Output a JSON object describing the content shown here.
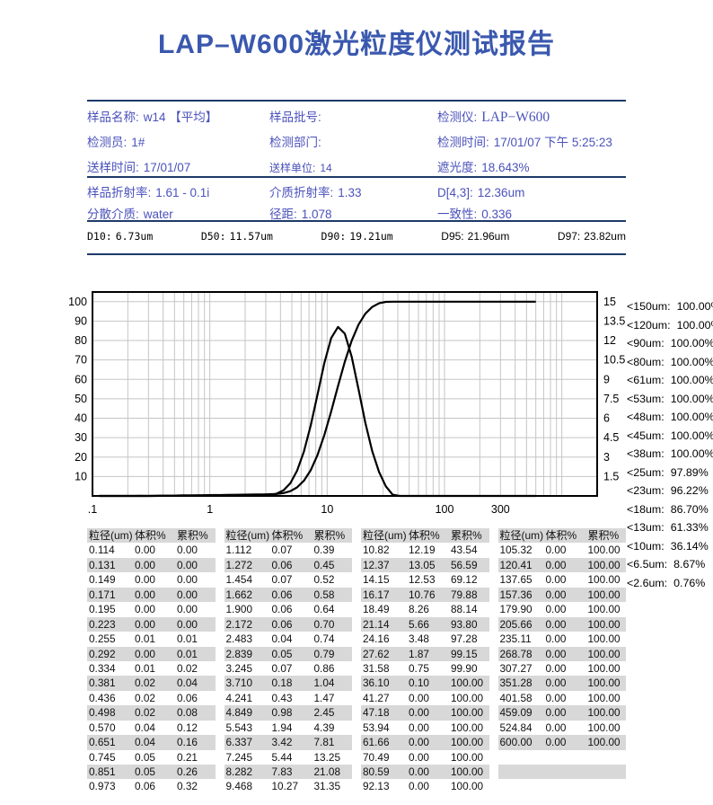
{
  "title": "LAP–W600激光粒度仪测试报告",
  "info": {
    "rows_top": [
      [
        {
          "label": "样品名称:",
          "value": "w14 【平均】"
        },
        {
          "label": "样品批号:",
          "value": ""
        },
        {
          "label": "检测仪:",
          "value": "LAP−W600",
          "serif": true
        }
      ],
      [
        {
          "label": "检测员:",
          "value": "1#"
        },
        {
          "label": "检测部门:",
          "value": ""
        },
        {
          "label": "检测时间:",
          "value": "17/01/07 下午 5:25:23"
        }
      ],
      [
        {
          "label": "送样时间:",
          "value": "17/01/07"
        },
        {
          "label": "送样单位:",
          "value": "14",
          "small": true
        },
        {
          "label": "遮光度:",
          "value": "18.643%"
        }
      ]
    ],
    "rows_mid": [
      [
        {
          "label": "样品折射率:",
          "value": "1.61 - 0.1i"
        },
        {
          "label": "介质折射率:",
          "value": "1.33"
        },
        {
          "label": "D[4,3]:",
          "value": "12.36um"
        }
      ],
      [
        {
          "label": "分散介质:",
          "value": "water"
        },
        {
          "label": "径距:",
          "value": "1.078"
        },
        {
          "label": "一致性:",
          "value": "0.336"
        }
      ]
    ]
  },
  "d_values": [
    {
      "label": "D10:",
      "value": "6.73um",
      "mono": true
    },
    {
      "label": "D50:",
      "value": "11.57um",
      "mono": true
    },
    {
      "label": "D90:",
      "value": "19.21um",
      "mono": true
    },
    {
      "label": "D95:",
      "value": "21.96um",
      "mono": false
    },
    {
      "label": "D97:",
      "value": "23.82um",
      "mono": false
    }
  ],
  "chart_data": {
    "type": "line",
    "x_scale": "log",
    "x_range": [
      0.1,
      2000
    ],
    "x_tick_labels": [
      ".1",
      "1",
      "10",
      "100",
      "300"
    ],
    "x_tick_values": [
      0.1,
      1,
      10,
      100,
      300
    ],
    "left_axis": {
      "label": "累积%",
      "range": [
        0,
        105
      ],
      "ticks": [
        10,
        20,
        30,
        40,
        50,
        60,
        70,
        80,
        90,
        100
      ]
    },
    "right_axis": {
      "label": "体积%",
      "range": [
        0,
        15.75
      ],
      "ticks": [
        1.5,
        3,
        4.5,
        6,
        7.5,
        9,
        10.5,
        12,
        13.5,
        15
      ]
    },
    "grid": true,
    "x": [
      0.114,
      0.131,
      0.149,
      0.171,
      0.195,
      0.223,
      0.255,
      0.292,
      0.334,
      0.381,
      0.436,
      0.498,
      0.57,
      0.651,
      0.745,
      0.851,
      0.973,
      1.112,
      1.272,
      1.454,
      1.662,
      1.9,
      2.172,
      2.483,
      2.839,
      3.245,
      3.71,
      4.241,
      4.849,
      5.543,
      6.337,
      7.245,
      8.282,
      9.468,
      10.82,
      12.37,
      14.15,
      16.17,
      18.49,
      21.14,
      24.16,
      27.62,
      31.58,
      36.1,
      41.27,
      47.18,
      53.94,
      61.66,
      70.49,
      80.59,
      92.13,
      105.32,
      120.41,
      137.65,
      157.36,
      179.9,
      205.66,
      235.11,
      268.78,
      307.27,
      351.28,
      401.58,
      459.09,
      524.84,
      600.0
    ],
    "series": [
      {
        "name": "体积%",
        "axis": "right",
        "values": [
          0,
          0,
          0,
          0,
          0,
          0,
          0.01,
          0,
          0.01,
          0.02,
          0.02,
          0.02,
          0.04,
          0.04,
          0.05,
          0.05,
          0.06,
          0.07,
          0.06,
          0.07,
          0.06,
          0.06,
          0.06,
          0.04,
          0.05,
          0.07,
          0.18,
          0.43,
          0.98,
          1.94,
          3.42,
          5.44,
          7.83,
          10.27,
          12.19,
          13.05,
          12.53,
          10.76,
          8.26,
          5.66,
          3.48,
          1.87,
          0.75,
          0.1,
          0,
          0,
          0,
          0,
          0,
          0,
          0,
          0,
          0,
          0,
          0,
          0,
          0,
          0,
          0,
          0,
          0,
          0,
          0,
          0,
          0
        ]
      },
      {
        "name": "累积%",
        "axis": "left",
        "values": [
          0,
          0,
          0,
          0,
          0,
          0,
          0.01,
          0.01,
          0.02,
          0.04,
          0.06,
          0.08,
          0.12,
          0.16,
          0.21,
          0.26,
          0.32,
          0.39,
          0.45,
          0.52,
          0.58,
          0.64,
          0.7,
          0.74,
          0.79,
          0.86,
          1.04,
          1.47,
          2.45,
          4.39,
          7.81,
          13.25,
          21.08,
          31.35,
          43.54,
          56.59,
          69.12,
          79.88,
          88.14,
          93.8,
          97.28,
          99.15,
          99.9,
          100,
          100,
          100,
          100,
          100,
          100,
          100,
          100,
          100,
          100,
          100,
          100,
          100,
          100,
          100,
          100,
          100,
          100,
          100,
          100,
          100,
          100
        ]
      }
    ]
  },
  "pct_list": [
    {
      "label": "<150um:",
      "value": "100.00%"
    },
    {
      "label": "<120um:",
      "value": "100.00%"
    },
    {
      "label": "<90um:",
      "value": "100.00%"
    },
    {
      "label": "<80um:",
      "value": "100.00%"
    },
    {
      "label": "<61um:",
      "value": "100.00%"
    },
    {
      "label": "<53um:",
      "value": "100.00%"
    },
    {
      "label": "<48um:",
      "value": "100.00%"
    },
    {
      "label": "<45um:",
      "value": "100.00%"
    },
    {
      "label": "<38um:",
      "value": "100.00%"
    },
    {
      "label": "<25um:",
      "value": "97.89%"
    },
    {
      "label": "<23um:",
      "value": "96.22%"
    },
    {
      "label": "<18um:",
      "value": "86.70%"
    },
    {
      "label": "<13um:",
      "value": "61.33%"
    },
    {
      "label": "<10um:",
      "value": "36.14%"
    },
    {
      "label": "<6.5um:",
      "value": "8.67%"
    },
    {
      "label": "<2.6um:",
      "value": "0.76%"
    }
  ],
  "table": {
    "headers": [
      "粒径(um)",
      "体积%",
      "累积%"
    ],
    "groups": [
      [
        [
          "0.114",
          "0.00",
          "0.00"
        ],
        [
          "0.131",
          "0.00",
          "0.00"
        ],
        [
          "0.149",
          "0.00",
          "0.00"
        ],
        [
          "0.171",
          "0.00",
          "0.00"
        ],
        [
          "0.195",
          "0.00",
          "0.00"
        ],
        [
          "0.223",
          "0.00",
          "0.00"
        ],
        [
          "0.255",
          "0.01",
          "0.01"
        ],
        [
          "0.292",
          "0.00",
          "0.01"
        ],
        [
          "0.334",
          "0.01",
          "0.02"
        ],
        [
          "0.381",
          "0.02",
          "0.04"
        ],
        [
          "0.436",
          "0.02",
          "0.06"
        ],
        [
          "0.498",
          "0.02",
          "0.08"
        ],
        [
          "0.570",
          "0.04",
          "0.12"
        ],
        [
          "0.651",
          "0.04",
          "0.16"
        ],
        [
          "0.745",
          "0.05",
          "0.21"
        ],
        [
          "0.851",
          "0.05",
          "0.26"
        ],
        [
          "0.973",
          "0.06",
          "0.32"
        ]
      ],
      [
        [
          "1.112",
          "0.07",
          "0.39"
        ],
        [
          "1.272",
          "0.06",
          "0.45"
        ],
        [
          "1.454",
          "0.07",
          "0.52"
        ],
        [
          "1.662",
          "0.06",
          "0.58"
        ],
        [
          "1.900",
          "0.06",
          "0.64"
        ],
        [
          "2.172",
          "0.06",
          "0.70"
        ],
        [
          "2.483",
          "0.04",
          "0.74"
        ],
        [
          "2.839",
          "0.05",
          "0.79"
        ],
        [
          "3.245",
          "0.07",
          "0.86"
        ],
        [
          "3.710",
          "0.18",
          "1.04"
        ],
        [
          "4.241",
          "0.43",
          "1.47"
        ],
        [
          "4.849",
          "0.98",
          "2.45"
        ],
        [
          "5.543",
          "1.94",
          "4.39"
        ],
        [
          "6.337",
          "3.42",
          "7.81"
        ],
        [
          "7.245",
          "5.44",
          "13.25"
        ],
        [
          "8.282",
          "7.83",
          "21.08"
        ],
        [
          "9.468",
          "10.27",
          "31.35"
        ]
      ],
      [
        [
          "10.82",
          "12.19",
          "43.54"
        ],
        [
          "12.37",
          "13.05",
          "56.59"
        ],
        [
          "14.15",
          "12.53",
          "69.12"
        ],
        [
          "16.17",
          "10.76",
          "79.88"
        ],
        [
          "18.49",
          "8.26",
          "88.14"
        ],
        [
          "21.14",
          "5.66",
          "93.80"
        ],
        [
          "24.16",
          "3.48",
          "97.28"
        ],
        [
          "27.62",
          "1.87",
          "99.15"
        ],
        [
          "31.58",
          "0.75",
          "99.90"
        ],
        [
          "36.10",
          "0.10",
          "100.00"
        ],
        [
          "41.27",
          "0.00",
          "100.00"
        ],
        [
          "47.18",
          "0.00",
          "100.00"
        ],
        [
          "53.94",
          "0.00",
          "100.00"
        ],
        [
          "61.66",
          "0.00",
          "100.00"
        ],
        [
          "70.49",
          "0.00",
          "100.00"
        ],
        [
          "80.59",
          "0.00",
          "100.00"
        ],
        [
          "92.13",
          "0.00",
          "100.00"
        ]
      ],
      [
        [
          "105.32",
          "0.00",
          "100.00"
        ],
        [
          "120.41",
          "0.00",
          "100.00"
        ],
        [
          "137.65",
          "0.00",
          "100.00"
        ],
        [
          "157.36",
          "0.00",
          "100.00"
        ],
        [
          "179.90",
          "0.00",
          "100.00"
        ],
        [
          "205.66",
          "0.00",
          "100.00"
        ],
        [
          "235.11",
          "0.00",
          "100.00"
        ],
        [
          "268.78",
          "0.00",
          "100.00"
        ],
        [
          "307.27",
          "0.00",
          "100.00"
        ],
        [
          "351.28",
          "0.00",
          "100.00"
        ],
        [
          "401.58",
          "0.00",
          "100.00"
        ],
        [
          "459.09",
          "0.00",
          "100.00"
        ],
        [
          "524.84",
          "0.00",
          "100.00"
        ],
        [
          "600.00",
          "0.00",
          "100.00"
        ],
        [
          "",
          "",
          ""
        ],
        [
          "",
          "",
          ""
        ],
        [
          "",
          "",
          ""
        ]
      ]
    ]
  },
  "colors": {
    "title_blue": "#3a58ae",
    "info_blue": "#4b52bb",
    "rule_navy": "#1e3a6a",
    "stripe_gray": "#d8d8d8",
    "grid_gray": "#c5c5c5",
    "curve_black": "#000000"
  }
}
